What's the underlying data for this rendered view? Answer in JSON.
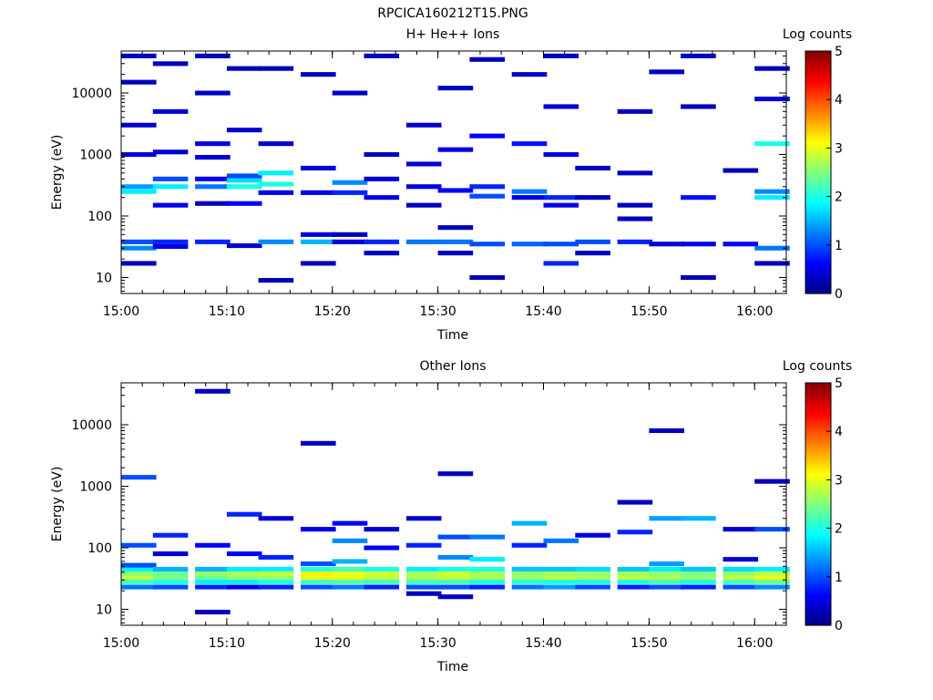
{
  "figure": {
    "title": "RPCICA160212T15.PNG"
  },
  "chart_data": [
    {
      "type": "heatmap",
      "title": "H+ He++ Ions",
      "xlabel": "Time",
      "ylabel": "Energy (eV)",
      "x_ticks": [
        "15:00",
        "15:10",
        "15:20",
        "15:30",
        "15:40",
        "15:50",
        "16:00"
      ],
      "y_ticks": [
        "10",
        "100",
        "1000",
        "10000"
      ],
      "y_scale": "log",
      "xlim": [
        "15:00",
        "16:03"
      ],
      "ylim": [
        5.5,
        48000
      ],
      "colorbar": {
        "label": "Log counts",
        "ticks": [
          "0",
          "1",
          "2",
          "3",
          "4",
          "5"
        ],
        "range": [
          0,
          5
        ],
        "colormap": "jet"
      },
      "time_columns": [
        "15:00",
        "15:03",
        "15:07",
        "15:10",
        "15:13",
        "15:17",
        "15:20",
        "15:23",
        "15:27",
        "15:30",
        "15:33",
        "15:37",
        "15:40",
        "15:43",
        "15:47",
        "15:50",
        "15:53",
        "15:57",
        "16:00"
      ],
      "cells": [
        [
          0,
          17,
          0.3
        ],
        [
          0,
          30,
          1.3
        ],
        [
          0,
          38,
          1.0
        ],
        [
          0,
          250,
          1.8
        ],
        [
          0,
          300,
          1.4
        ],
        [
          0,
          1000,
          0.5
        ],
        [
          0,
          3000,
          0.4
        ],
        [
          0,
          15000,
          0.3
        ],
        [
          0,
          40000,
          0.3
        ],
        [
          1,
          32,
          0.5
        ],
        [
          1,
          38,
          0.8
        ],
        [
          1,
          150,
          0.5
        ],
        [
          1,
          300,
          1.8
        ],
        [
          1,
          400,
          1.0
        ],
        [
          1,
          1100,
          0.4
        ],
        [
          1,
          5000,
          0.4
        ],
        [
          1,
          30000,
          0.3
        ],
        [
          2,
          38,
          0.8
        ],
        [
          2,
          160,
          0.3
        ],
        [
          2,
          300,
          1.2
        ],
        [
          2,
          400,
          0.6
        ],
        [
          2,
          900,
          0.4
        ],
        [
          2,
          1500,
          0.5
        ],
        [
          2,
          10000,
          0.3
        ],
        [
          2,
          40000,
          0.3
        ],
        [
          3,
          33,
          0.4
        ],
        [
          3,
          160,
          0.6
        ],
        [
          3,
          300,
          2.0
        ],
        [
          3,
          380,
          1.7
        ],
        [
          3,
          450,
          1.0
        ],
        [
          3,
          2500,
          0.4
        ],
        [
          3,
          25000,
          0.3
        ],
        [
          4,
          9,
          0.3
        ],
        [
          4,
          38,
          1.3
        ],
        [
          4,
          240,
          0.5
        ],
        [
          4,
          330,
          2.0
        ],
        [
          4,
          500,
          1.8
        ],
        [
          4,
          1500,
          0.4
        ],
        [
          4,
          25000,
          0.3
        ],
        [
          5,
          17,
          0.3
        ],
        [
          5,
          38,
          1.5
        ],
        [
          5,
          50,
          0.5
        ],
        [
          5,
          240,
          0.5
        ],
        [
          5,
          600,
          0.4
        ],
        [
          5,
          20000,
          0.3
        ],
        [
          6,
          38,
          0.4
        ],
        [
          6,
          50,
          0.3
        ],
        [
          6,
          240,
          0.8
        ],
        [
          6,
          350,
          1.3
        ],
        [
          6,
          10000,
          0.3
        ],
        [
          7,
          25,
          0.3
        ],
        [
          7,
          38,
          0.8
        ],
        [
          7,
          200,
          0.5
        ],
        [
          7,
          400,
          0.4
        ],
        [
          7,
          1000,
          0.3
        ],
        [
          7,
          40000,
          0.3
        ],
        [
          8,
          38,
          1.2
        ],
        [
          8,
          150,
          0.3
        ],
        [
          8,
          300,
          0.5
        ],
        [
          8,
          700,
          0.4
        ],
        [
          8,
          3000,
          0.4
        ],
        [
          9,
          25,
          0.3
        ],
        [
          9,
          38,
          1.2
        ],
        [
          9,
          65,
          0.3
        ],
        [
          9,
          260,
          0.6
        ],
        [
          9,
          1200,
          0.5
        ],
        [
          9,
          12000,
          0.3
        ],
        [
          10,
          10,
          0.3
        ],
        [
          10,
          35,
          1.0
        ],
        [
          10,
          210,
          1.0
        ],
        [
          10,
          300,
          0.8
        ],
        [
          10,
          2000,
          0.6
        ],
        [
          10,
          35000,
          0.3
        ],
        [
          11,
          35,
          1.1
        ],
        [
          11,
          200,
          0.5
        ],
        [
          11,
          250,
          1.2
        ],
        [
          11,
          1500,
          0.7
        ],
        [
          11,
          20000,
          0.4
        ],
        [
          12,
          17,
          0.8
        ],
        [
          12,
          35,
          1.0
        ],
        [
          12,
          150,
          0.5
        ],
        [
          12,
          200,
          0.8
        ],
        [
          12,
          1000,
          0.5
        ],
        [
          12,
          6000,
          0.4
        ],
        [
          12,
          40000,
          0.3
        ],
        [
          13,
          25,
          0.3
        ],
        [
          13,
          38,
          1.0
        ],
        [
          13,
          200,
          0.3
        ],
        [
          13,
          600,
          0.3
        ],
        [
          14,
          38,
          0.8
        ],
        [
          14,
          90,
          0.3
        ],
        [
          14,
          150,
          0.3
        ],
        [
          14,
          500,
          0.3
        ],
        [
          14,
          5000,
          0.3
        ],
        [
          15,
          35,
          0.4
        ],
        [
          15,
          22000,
          0.3
        ],
        [
          16,
          10,
          0.3
        ],
        [
          16,
          35,
          0.5
        ],
        [
          16,
          200,
          0.7
        ],
        [
          16,
          6000,
          0.3
        ],
        [
          16,
          40000,
          0.3
        ],
        [
          17,
          35,
          0.6
        ],
        [
          17,
          550,
          0.3
        ],
        [
          18,
          17,
          0.3
        ],
        [
          18,
          30,
          1.2
        ],
        [
          18,
          200,
          1.8
        ],
        [
          18,
          250,
          1.3
        ],
        [
          18,
          1500,
          2.0
        ],
        [
          18,
          8000,
          0.4
        ],
        [
          18,
          25000,
          0.3
        ]
      ]
    },
    {
      "type": "heatmap",
      "title": "Other Ions",
      "xlabel": "Time",
      "ylabel": "Energy (eV)",
      "x_ticks": [
        "15:00",
        "15:10",
        "15:20",
        "15:30",
        "15:40",
        "15:50",
        "16:00"
      ],
      "y_ticks": [
        "10",
        "100",
        "1000",
        "10000"
      ],
      "y_scale": "log",
      "xlim": [
        "15:00",
        "16:03"
      ],
      "ylim": [
        5.5,
        48000
      ],
      "colorbar": {
        "label": "Log counts",
        "ticks": [
          "0",
          "1",
          "2",
          "3",
          "4",
          "5"
        ],
        "range": [
          0,
          5
        ],
        "colormap": "jet"
      },
      "time_columns": [
        "15:00",
        "15:03",
        "15:07",
        "15:10",
        "15:13",
        "15:17",
        "15:20",
        "15:23",
        "15:27",
        "15:30",
        "15:33",
        "15:37",
        "15:40",
        "15:43",
        "15:47",
        "15:50",
        "15:53",
        "15:57",
        "16:00"
      ],
      "cells": [
        [
          0,
          23,
          1.2
        ],
        [
          0,
          28,
          2.2
        ],
        [
          0,
          33,
          2.8
        ],
        [
          0,
          38,
          2.6
        ],
        [
          0,
          45,
          1.8
        ],
        [
          0,
          52,
          1.0
        ],
        [
          0,
          110,
          1.0
        ],
        [
          0,
          1400,
          1.0
        ],
        [
          1,
          23,
          1.0
        ],
        [
          1,
          28,
          2.0
        ],
        [
          1,
          33,
          2.5
        ],
        [
          1,
          38,
          2.4
        ],
        [
          1,
          45,
          1.5
        ],
        [
          1,
          80,
          0.4
        ],
        [
          1,
          160,
          0.8
        ],
        [
          2,
          9,
          0.3
        ],
        [
          2,
          23,
          0.8
        ],
        [
          2,
          28,
          1.8
        ],
        [
          2,
          33,
          2.4
        ],
        [
          2,
          38,
          2.6
        ],
        [
          2,
          45,
          1.5
        ],
        [
          2,
          110,
          0.6
        ],
        [
          2,
          35000,
          0.3
        ],
        [
          3,
          23,
          0.5
        ],
        [
          3,
          28,
          1.8
        ],
        [
          3,
          33,
          2.6
        ],
        [
          3,
          38,
          2.7
        ],
        [
          3,
          45,
          1.8
        ],
        [
          3,
          80,
          0.6
        ],
        [
          3,
          350,
          0.8
        ],
        [
          4,
          23,
          0.8
        ],
        [
          4,
          28,
          2.0
        ],
        [
          4,
          33,
          2.6
        ],
        [
          4,
          38,
          2.8
        ],
        [
          4,
          45,
          1.8
        ],
        [
          4,
          70,
          0.8
        ],
        [
          4,
          300,
          0.4
        ],
        [
          5,
          23,
          1.0
        ],
        [
          5,
          28,
          2.2
        ],
        [
          5,
          33,
          3.0
        ],
        [
          5,
          38,
          3.2
        ],
        [
          5,
          45,
          2.0
        ],
        [
          5,
          55,
          1.0
        ],
        [
          5,
          200,
          0.5
        ],
        [
          5,
          5000,
          0.3
        ],
        [
          6,
          23,
          1.2
        ],
        [
          6,
          28,
          2.3
        ],
        [
          6,
          33,
          3.0
        ],
        [
          6,
          38,
          3.0
        ],
        [
          6,
          45,
          2.2
        ],
        [
          6,
          60,
          1.5
        ],
        [
          6,
          130,
          1.3
        ],
        [
          6,
          250,
          0.6
        ],
        [
          7,
          23,
          0.8
        ],
        [
          7,
          28,
          2.2
        ],
        [
          7,
          33,
          2.8
        ],
        [
          7,
          38,
          2.9
        ],
        [
          7,
          45,
          2.0
        ],
        [
          7,
          100,
          0.6
        ],
        [
          7,
          200,
          0.4
        ],
        [
          8,
          18,
          0.3
        ],
        [
          8,
          23,
          1.0
        ],
        [
          8,
          28,
          2.2
        ],
        [
          8,
          33,
          2.7
        ],
        [
          8,
          38,
          2.7
        ],
        [
          8,
          45,
          1.8
        ],
        [
          8,
          110,
          0.8
        ],
        [
          8,
          300,
          0.4
        ],
        [
          9,
          16,
          0.3
        ],
        [
          9,
          23,
          1.0
        ],
        [
          9,
          28,
          2.2
        ],
        [
          9,
          33,
          2.8
        ],
        [
          9,
          38,
          2.9
        ],
        [
          9,
          45,
          2.0
        ],
        [
          9,
          70,
          1.3
        ],
        [
          9,
          150,
          1.0
        ],
        [
          9,
          1600,
          0.3
        ],
        [
          10,
          23,
          0.8
        ],
        [
          10,
          28,
          2.0
        ],
        [
          10,
          33,
          2.7
        ],
        [
          10,
          38,
          2.7
        ],
        [
          10,
          45,
          2.0
        ],
        [
          10,
          65,
          1.8
        ],
        [
          10,
          150,
          1.2
        ],
        [
          11,
          23,
          1.2
        ],
        [
          11,
          28,
          2.1
        ],
        [
          11,
          33,
          2.6
        ],
        [
          11,
          38,
          2.6
        ],
        [
          11,
          45,
          1.6
        ],
        [
          11,
          110,
          0.8
        ],
        [
          11,
          250,
          1.5
        ],
        [
          12,
          23,
          1.4
        ],
        [
          12,
          28,
          2.0
        ],
        [
          12,
          33,
          2.8
        ],
        [
          12,
          38,
          2.7
        ],
        [
          12,
          45,
          1.6
        ],
        [
          12,
          130,
          1.2
        ],
        [
          13,
          23,
          1.0
        ],
        [
          13,
          28,
          2.0
        ],
        [
          13,
          33,
          2.7
        ],
        [
          13,
          38,
          2.6
        ],
        [
          13,
          45,
          1.7
        ],
        [
          13,
          160,
          0.5
        ],
        [
          14,
          23,
          0.8
        ],
        [
          14,
          28,
          2.0
        ],
        [
          14,
          33,
          2.8
        ],
        [
          14,
          38,
          2.7
        ],
        [
          14,
          45,
          1.6
        ],
        [
          14,
          180,
          0.8
        ],
        [
          14,
          550,
          0.3
        ],
        [
          15,
          23,
          1.0
        ],
        [
          15,
          28,
          2.2
        ],
        [
          15,
          33,
          2.7
        ],
        [
          15,
          38,
          2.6
        ],
        [
          15,
          45,
          1.8
        ],
        [
          15,
          55,
          1.4
        ],
        [
          15,
          300,
          1.4
        ],
        [
          15,
          8000,
          0.3
        ],
        [
          16,
          23,
          0.8
        ],
        [
          16,
          28,
          2.0
        ],
        [
          16,
          33,
          2.6
        ],
        [
          16,
          38,
          2.5
        ],
        [
          16,
          45,
          1.6
        ],
        [
          16,
          300,
          1.5
        ],
        [
          17,
          23,
          1.0
        ],
        [
          17,
          28,
          2.2
        ],
        [
          17,
          33,
          2.8
        ],
        [
          17,
          38,
          2.6
        ],
        [
          17,
          45,
          1.7
        ],
        [
          17,
          65,
          0.4
        ],
        [
          17,
          200,
          0.4
        ],
        [
          18,
          23,
          1.3
        ],
        [
          18,
          28,
          2.4
        ],
        [
          18,
          33,
          3.0
        ],
        [
          18,
          38,
          2.8
        ],
        [
          18,
          45,
          1.8
        ],
        [
          18,
          200,
          1.0
        ],
        [
          18,
          1200,
          0.3
        ]
      ]
    }
  ]
}
